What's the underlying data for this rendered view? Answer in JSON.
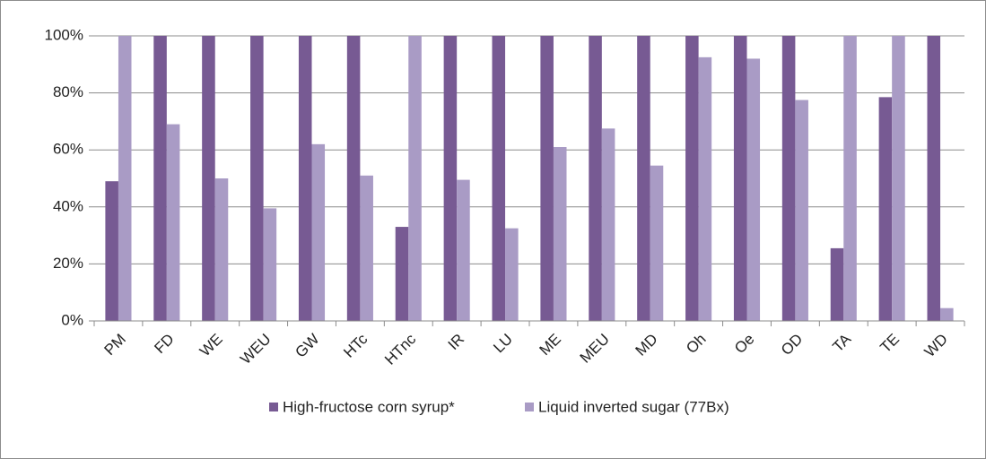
{
  "chart_data": {
    "type": "bar",
    "categories": [
      "PM",
      "FD",
      "WE",
      "WEU",
      "GW",
      "HTc",
      "HTnc",
      "IR",
      "LU",
      "ME",
      "MEU",
      "MD",
      "Oh",
      "Oe",
      "OD",
      "TA",
      "TE",
      "WD"
    ],
    "series": [
      {
        "name": "High-fructose corn syrup*",
        "color": "#775a93",
        "values": [
          49,
          100,
          100,
          100,
          100,
          100,
          33,
          100,
          100,
          100,
          100,
          100,
          100,
          100,
          100,
          25.5,
          78.5,
          100
        ]
      },
      {
        "name": "Liquid inverted sugar (77Bx)",
        "color": "#a99bc5",
        "values": [
          100,
          69,
          50,
          39.5,
          62,
          51,
          100,
          49.5,
          32.5,
          61,
          67.5,
          54.5,
          92.5,
          92,
          77.5,
          100,
          100,
          4.5
        ]
      }
    ],
    "ylim": [
      0,
      100
    ],
    "yticks": [
      {
        "value": 0,
        "label": "0%"
      },
      {
        "value": 20,
        "label": "20%"
      },
      {
        "value": 40,
        "label": "40%"
      },
      {
        "value": 60,
        "label": "60%"
      },
      {
        "value": 80,
        "label": "80%"
      },
      {
        "value": 100,
        "label": "100%"
      }
    ],
    "grid": true,
    "legend": "bottom"
  }
}
